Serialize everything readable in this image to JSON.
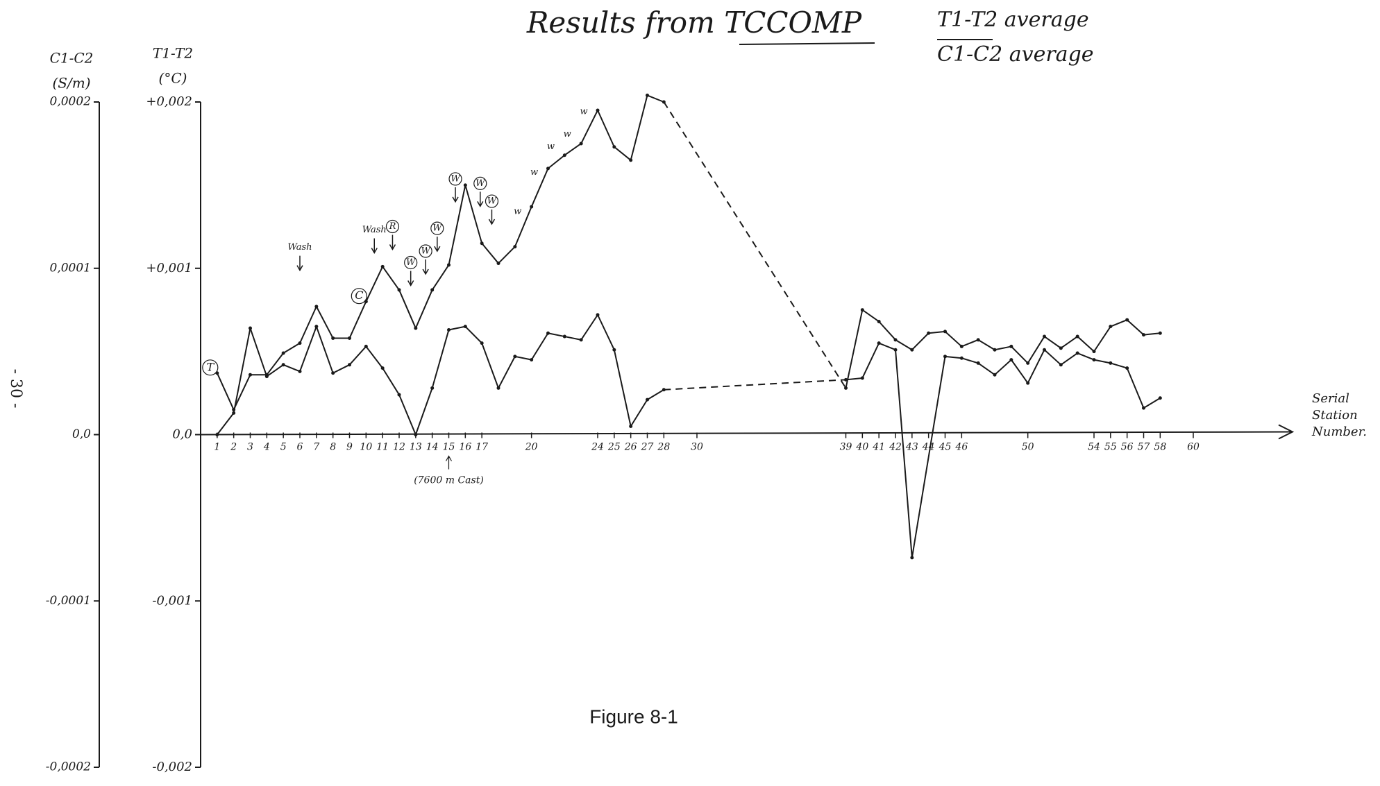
{
  "chart_data": {
    "type": "line",
    "title": "Results from TCCOMP",
    "caption": "Figure 8-1",
    "page_number": "- 30 -",
    "x_label": [
      "Serial",
      "Station",
      "Number."
    ],
    "y_label": [
      "T1-T2",
      "(°C)"
    ],
    "y2_label": [
      "C1-C2",
      "(S/m)"
    ],
    "xlim": [
      0,
      66
    ],
    "xticks": [
      1,
      2,
      3,
      4,
      5,
      6,
      7,
      8,
      9,
      10,
      11,
      12,
      13,
      14,
      15,
      16,
      17,
      20,
      24,
      25,
      26,
      27,
      28,
      30,
      39,
      40,
      41,
      42,
      43,
      44,
      45,
      46,
      50,
      54,
      55,
      56,
      57,
      58,
      60
    ],
    "ylim": [
      -0.002,
      0.002
    ],
    "yticks": [
      {
        "value": 0.002,
        "label": "+0,002"
      },
      {
        "value": 0.001,
        "label": "+0,001"
      },
      {
        "value": 0,
        "label": "0,0"
      },
      {
        "value": -0.001,
        "label": "-0,001"
      },
      {
        "value": -0.002,
        "label": "-0,002"
      }
    ],
    "y2lim": [
      -0.0002,
      0.0002
    ],
    "y2ticks": [
      {
        "value": 0.0002,
        "label": "0,0002"
      },
      {
        "value": 0.0001,
        "label": "0,0001"
      },
      {
        "value": 0,
        "label": "0,0"
      },
      {
        "value": -0.0001,
        "label": "-0,0001"
      },
      {
        "value": -0.0002,
        "label": "-0,0002"
      }
    ],
    "series": [
      {
        "name": "T1-T2 average",
        "color": "#1a1a1a",
        "x": [
          1,
          2,
          3,
          4,
          5,
          6,
          7,
          8,
          9,
          10,
          11,
          12,
          13,
          14,
          15,
          16,
          17,
          18,
          19,
          20,
          21,
          22,
          23,
          24,
          25,
          26,
          27,
          28,
          39,
          40,
          41,
          42,
          43,
          44,
          45,
          46,
          47,
          48,
          49,
          50,
          51,
          52,
          53,
          54,
          55,
          56,
          57,
          58
        ],
        "values": [
          0.00037,
          0.00015,
          0.00036,
          0.00036,
          0.00049,
          0.00055,
          0.00077,
          0.00058,
          0.00058,
          0.0008,
          0.00101,
          0.00087,
          0.00064,
          0.00087,
          0.00102,
          0.0015,
          0.00115,
          0.00103,
          0.00113,
          0.00137,
          0.0016,
          0.00168,
          0.00175,
          0.00195,
          0.00173,
          0.00165,
          0.00204,
          0.002,
          0.00028,
          0.00075,
          0.00068,
          0.00057,
          0.00051,
          0.00061,
          0.00062,
          0.00053,
          0.00057,
          0.00051,
          0.00053,
          0.00043,
          0.00059,
          0.00052,
          0.00059,
          0.0005,
          0.00065,
          0.00069,
          0.0006,
          0.00061
        ]
      },
      {
        "name": "C1-C2 average",
        "color": "#1a1a1a",
        "axis": "y2",
        "x": [
          1,
          2,
          3,
          4,
          5,
          6,
          7,
          8,
          9,
          10,
          11,
          12,
          13,
          14,
          15,
          16,
          17,
          18,
          19,
          20,
          21,
          22,
          23,
          24,
          25,
          26,
          27,
          28,
          39,
          40,
          41,
          42,
          43,
          45,
          46,
          47,
          48,
          49,
          50,
          51,
          52,
          53,
          54,
          55,
          56,
          57,
          58
        ],
        "values": [
          0,
          1.3e-05,
          6.4e-05,
          3.5e-05,
          4.2e-05,
          3.8e-05,
          6.5e-05,
          3.7e-05,
          4.2e-05,
          5.3e-05,
          4e-05,
          2.4e-05,
          0,
          2.8e-05,
          6.3e-05,
          6.5e-05,
          5.5e-05,
          2.8e-05,
          4.7e-05,
          4.5e-05,
          6.1e-05,
          5.9e-05,
          5.7e-05,
          7.2e-05,
          5.1e-05,
          5e-06,
          2.1e-05,
          2.7e-05,
          3.3e-05,
          3.4e-05,
          5.5e-05,
          5.1e-05,
          -7.4e-05,
          4.7e-05,
          4.6e-05,
          4.3e-05,
          3.6e-05,
          4.5e-05,
          3.1e-05,
          5.1e-05,
          4.2e-05,
          4.9e-05,
          4.5e-05,
          4.3e-05,
          4e-05,
          1.6e-05,
          2.2e-05
        ]
      }
    ],
    "annotations": [
      {
        "text": "T",
        "x": 1,
        "arrow": false
      },
      {
        "text": "C",
        "x": 10,
        "arrow": false
      },
      {
        "text": "Wash",
        "x": 6,
        "arrow": true
      },
      {
        "text": "Wash",
        "x": 10.5,
        "arrow": true
      },
      {
        "text": "R",
        "x": 11.6,
        "arrow": true
      },
      {
        "text": "W",
        "x": 12.7,
        "arrow": true
      },
      {
        "text": "W",
        "x": 13.6,
        "arrow": true
      },
      {
        "text": "W",
        "x": 14.3,
        "arrow": true
      },
      {
        "text": "W",
        "x": 15.4,
        "arrow": true
      },
      {
        "text": "W",
        "x": 16.9,
        "arrow": true
      },
      {
        "text": "W",
        "x": 17.6,
        "arrow": true
      },
      {
        "text": "w",
        "x": 19.5,
        "arrow": false
      },
      {
        "text": "w",
        "x": 20.5,
        "arrow": false
      },
      {
        "text": "w",
        "x": 21.5,
        "arrow": false
      },
      {
        "text": "w",
        "x": 22.5,
        "arrow": false
      },
      {
        "text": "w",
        "x": 23.5,
        "arrow": false
      }
    ],
    "cast_note": "(7600 m Cast)",
    "cast_x": 15
  }
}
